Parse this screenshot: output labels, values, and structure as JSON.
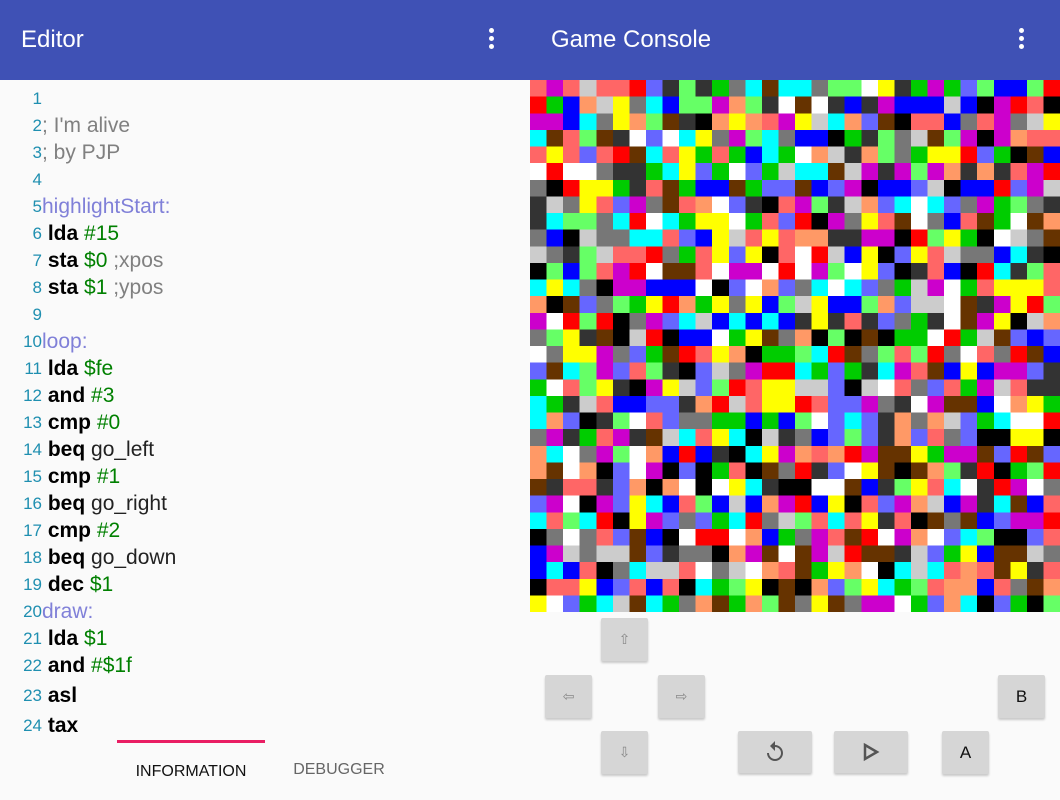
{
  "editor": {
    "title": "Editor",
    "lines": [
      {
        "n": "1",
        "tokens": []
      },
      {
        "n": "2",
        "tokens": [
          {
            "t": "comment",
            "v": "; I'm alive"
          }
        ]
      },
      {
        "n": "3",
        "tokens": [
          {
            "t": "comment",
            "v": "; by PJP"
          }
        ]
      },
      {
        "n": "4",
        "tokens": []
      },
      {
        "n": "5",
        "tokens": [
          {
            "t": "label",
            "v": "highlightStart:"
          }
        ]
      },
      {
        "n": "6",
        "tokens": [
          {
            "t": "op",
            "v": " lda "
          },
          {
            "t": "arg",
            "v": "#15"
          }
        ]
      },
      {
        "n": "7",
        "tokens": [
          {
            "t": "op",
            "v": " sta "
          },
          {
            "t": "arg",
            "v": "$0"
          },
          {
            "t": "comment",
            "v": " ;xpos"
          }
        ]
      },
      {
        "n": "8",
        "tokens": [
          {
            "t": "op",
            "v": " sta "
          },
          {
            "t": "arg",
            "v": "$1"
          },
          {
            "t": "comment",
            "v": " ;ypos"
          }
        ]
      },
      {
        "n": "9",
        "tokens": []
      },
      {
        "n": "10",
        "tokens": [
          {
            "t": "label",
            "v": "loop:"
          }
        ]
      },
      {
        "n": "11",
        "tokens": [
          {
            "t": "op",
            "v": " lda "
          },
          {
            "t": "arg",
            "v": "$fe"
          }
        ]
      },
      {
        "n": "12",
        "tokens": [
          {
            "t": "op",
            "v": " and "
          },
          {
            "t": "arg",
            "v": "#3"
          }
        ]
      },
      {
        "n": "13",
        "tokens": [
          {
            "t": "op",
            "v": " cmp "
          },
          {
            "t": "arg",
            "v": "#0"
          }
        ]
      },
      {
        "n": "14",
        "tokens": [
          {
            "t": "op",
            "v": " beq "
          },
          {
            "t": "ident",
            "v": "go_left"
          }
        ]
      },
      {
        "n": "15",
        "tokens": [
          {
            "t": "op",
            "v": " cmp "
          },
          {
            "t": "arg",
            "v": "#1"
          }
        ]
      },
      {
        "n": "16",
        "tokens": [
          {
            "t": "op",
            "v": " beq "
          },
          {
            "t": "ident",
            "v": "go_right"
          }
        ]
      },
      {
        "n": "17",
        "tokens": [
          {
            "t": "op",
            "v": " cmp "
          },
          {
            "t": "arg",
            "v": "#2"
          }
        ]
      },
      {
        "n": "18",
        "tokens": [
          {
            "t": "op",
            "v": " beq "
          },
          {
            "t": "ident",
            "v": "go_down"
          }
        ]
      },
      {
        "n": "19",
        "tokens": [
          {
            "t": "op",
            "v": " dec "
          },
          {
            "t": "arg",
            "v": "$1"
          }
        ]
      },
      {
        "n": "20",
        "tokens": [
          {
            "t": "label",
            "v": "draw:"
          }
        ]
      },
      {
        "n": "21",
        "tokens": [
          {
            "t": "op",
            "v": " lda "
          },
          {
            "t": "arg",
            "v": "$1"
          }
        ]
      },
      {
        "n": "22",
        "tokens": [
          {
            "t": "op",
            "v": " and "
          },
          {
            "t": "arg",
            "v": "#$1f"
          }
        ]
      },
      {
        "n": "23",
        "tokens": [
          {
            "t": "op",
            "v": " asl"
          }
        ]
      },
      {
        "n": "24",
        "tokens": [
          {
            "t": "op",
            "v": " tax"
          }
        ]
      }
    ]
  },
  "tabs": [
    {
      "label": "INFORMATION",
      "active": true
    },
    {
      "label": "DEBUGGER",
      "active": false
    }
  ],
  "console": {
    "title": "Game Console",
    "screen_palette": [
      "#000000",
      "#ffffff",
      "#ff0000",
      "#00ffff",
      "#cc00cc",
      "#00cc00",
      "#0000ff",
      "#ffff00",
      "#ff9966",
      "#663300",
      "#ff6666",
      "#333333",
      "#777777",
      "#66ff66",
      "#6666ff",
      "#cccccc"
    ],
    "buttons": {
      "up": "⇧",
      "left": "⇦",
      "right": "⇨",
      "down": "⇩",
      "reset": "reset-icon",
      "play": "play-icon",
      "a": "A",
      "b": "B"
    }
  },
  "colors": {
    "appbar": "#3f51b5",
    "tab_indicator": "#e91e63"
  }
}
